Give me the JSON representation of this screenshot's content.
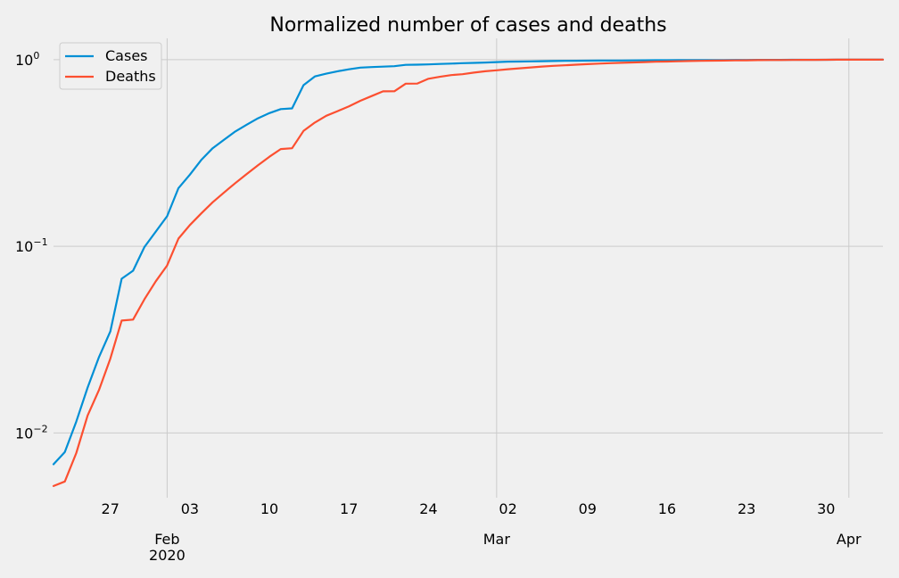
{
  "chart_data": {
    "type": "line",
    "title": "Normalized number of cases and deaths",
    "xlabel": "",
    "ylabel": "",
    "yscale": "log",
    "ylim": [
      0.0045,
      1.3
    ],
    "xlim": [
      "2020-01-22",
      "2020-04-04"
    ],
    "grid": true,
    "legend_position": "top-left",
    "y_ticks": [
      {
        "value": 0.01,
        "base": "10",
        "exp": "−2"
      },
      {
        "value": 0.1,
        "base": "10",
        "exp": "−1"
      },
      {
        "value": 1,
        "base": "10",
        "exp": "0"
      }
    ],
    "x_minor_ticks": [
      {
        "date": "2020-01-27",
        "label": "27"
      },
      {
        "date": "2020-02-03",
        "label": "03"
      },
      {
        "date": "2020-02-10",
        "label": "10"
      },
      {
        "date": "2020-02-17",
        "label": "17"
      },
      {
        "date": "2020-02-24",
        "label": "24"
      },
      {
        "date": "2020-03-02",
        "label": "02"
      },
      {
        "date": "2020-03-09",
        "label": "09"
      },
      {
        "date": "2020-03-16",
        "label": "16"
      },
      {
        "date": "2020-03-23",
        "label": "23"
      },
      {
        "date": "2020-03-30",
        "label": "30"
      }
    ],
    "x_major_ticks": [
      {
        "date": "2020-02-01",
        "label": "Feb",
        "sublabel": "2020"
      },
      {
        "date": "2020-03-01",
        "label": "Mar",
        "sublabel": ""
      },
      {
        "date": "2020-04-01",
        "label": "Apr",
        "sublabel": ""
      }
    ],
    "x": [
      "2020-01-22",
      "2020-01-23",
      "2020-01-24",
      "2020-01-25",
      "2020-01-26",
      "2020-01-27",
      "2020-01-28",
      "2020-01-29",
      "2020-01-30",
      "2020-01-31",
      "2020-02-01",
      "2020-02-02",
      "2020-02-03",
      "2020-02-04",
      "2020-02-05",
      "2020-02-06",
      "2020-02-07",
      "2020-02-08",
      "2020-02-09",
      "2020-02-10",
      "2020-02-11",
      "2020-02-12",
      "2020-02-13",
      "2020-02-14",
      "2020-02-15",
      "2020-02-16",
      "2020-02-17",
      "2020-02-18",
      "2020-02-19",
      "2020-02-20",
      "2020-02-21",
      "2020-02-22",
      "2020-02-23",
      "2020-02-24",
      "2020-02-25",
      "2020-02-26",
      "2020-02-27",
      "2020-02-28",
      "2020-02-29",
      "2020-03-01",
      "2020-03-02",
      "2020-03-03",
      "2020-03-04",
      "2020-03-05",
      "2020-03-06",
      "2020-03-07",
      "2020-03-08",
      "2020-03-09",
      "2020-03-10",
      "2020-03-11",
      "2020-03-12",
      "2020-03-13",
      "2020-03-14",
      "2020-03-15",
      "2020-03-16",
      "2020-03-17",
      "2020-03-18",
      "2020-03-19",
      "2020-03-20",
      "2020-03-21",
      "2020-03-22",
      "2020-03-23",
      "2020-03-24",
      "2020-03-25",
      "2020-03-26",
      "2020-03-27",
      "2020-03-28",
      "2020-03-29",
      "2020-03-30",
      "2020-03-31",
      "2020-04-01",
      "2020-04-02",
      "2020-04-03",
      "2020-04-04"
    ],
    "series": [
      {
        "name": "Cases",
        "color": "#008fd5",
        "values": [
          0.0068,
          0.0079,
          0.0115,
          0.0175,
          0.0255,
          0.035,
          0.067,
          0.074,
          0.099,
          0.12,
          0.145,
          0.205,
          0.242,
          0.29,
          0.335,
          0.372,
          0.412,
          0.448,
          0.485,
          0.517,
          0.543,
          0.548,
          0.73,
          0.813,
          0.841,
          0.866,
          0.887,
          0.906,
          0.912,
          0.917,
          0.922,
          0.938,
          0.94,
          0.943,
          0.948,
          0.952,
          0.957,
          0.961,
          0.965,
          0.97,
          0.975,
          0.977,
          0.979,
          0.981,
          0.983,
          0.985,
          0.986,
          0.987,
          0.988,
          0.989,
          0.99,
          0.991,
          0.992,
          0.9925,
          0.993,
          0.9935,
          0.994,
          0.9945,
          0.995,
          0.9955,
          0.996,
          0.9965,
          0.997,
          0.9973,
          0.9976,
          0.9979,
          0.9982,
          0.9985,
          0.9988,
          0.9991,
          0.9994,
          0.9996,
          0.9998,
          1.0
        ]
      },
      {
        "name": "Deaths",
        "color": "#fc4f30",
        "values": [
          0.0052,
          0.0055,
          0.0078,
          0.0124,
          0.017,
          0.025,
          0.04,
          0.0405,
          0.052,
          0.065,
          0.079,
          0.11,
          0.13,
          0.15,
          0.172,
          0.194,
          0.218,
          0.244,
          0.272,
          0.302,
          0.332,
          0.335,
          0.415,
          0.46,
          0.5,
          0.53,
          0.562,
          0.602,
          0.638,
          0.676,
          0.677,
          0.743,
          0.744,
          0.79,
          0.809,
          0.826,
          0.835,
          0.852,
          0.866,
          0.877,
          0.888,
          0.898,
          0.908,
          0.918,
          0.926,
          0.933,
          0.94,
          0.946,
          0.952,
          0.957,
          0.962,
          0.966,
          0.97,
          0.974,
          0.977,
          0.98,
          0.983,
          0.985,
          0.987,
          0.989,
          0.9905,
          0.992,
          0.9935,
          0.9945,
          0.9955,
          0.9962,
          0.997,
          0.9977,
          0.9983,
          0.9989,
          0.9993,
          0.9996,
          0.9998,
          1.0
        ]
      }
    ]
  }
}
